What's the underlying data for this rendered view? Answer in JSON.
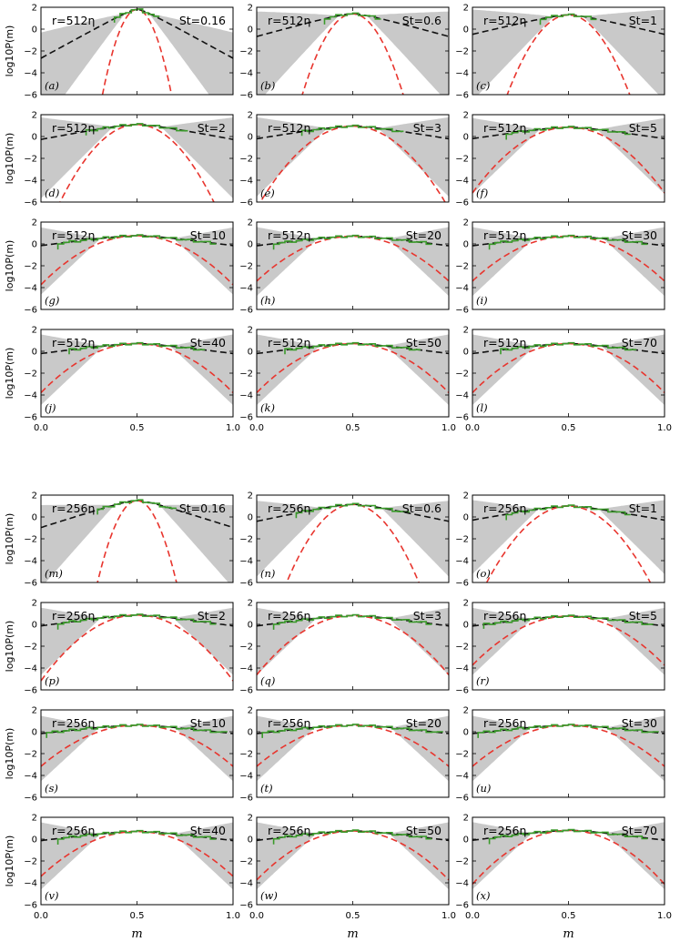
{
  "chart_data": {
    "type": "line",
    "description_axes": {
      "xlabel": "m",
      "ylabel": "log10P(m)",
      "xlim": [
        0.0,
        1.0
      ],
      "ylim": [
        -6,
        2
      ],
      "xticks": [
        "0.0",
        "0.5",
        "1.0"
      ],
      "yticks": [
        "2",
        "0",
        "-2",
        "-4",
        "-6"
      ]
    },
    "series_legend": [
      {
        "name": "simulation histogram",
        "color": "#3a9a2a",
        "style": "step"
      },
      {
        "name": "model (dashed black)",
        "color": "#111111",
        "style": "dashed"
      },
      {
        "name": "Gaussian (dashed red)",
        "color": "#e8352e",
        "style": "dashed"
      },
      {
        "name": "uncertainty band",
        "color": "#c8c8c8",
        "style": "fill"
      }
    ],
    "panels": [
      {
        "label": "(a)",
        "r": "r=512η",
        "st": "St=0.16",
        "peak": 1.8,
        "w_black": 0.035,
        "w_red": 0.03,
        "w_green": 0.035,
        "greenReach": 0.12,
        "grayOuter": 0.16
      },
      {
        "label": "(b)",
        "r": "r=512η",
        "st": "St=0.6",
        "peak": 1.4,
        "w_black": 0.07,
        "w_red": 0.045,
        "w_green": 0.07,
        "greenReach": 0.15,
        "grayOuter": 0.19
      },
      {
        "label": "(c)",
        "r": "r=512η",
        "st": "St=1",
        "peak": 1.3,
        "w_black": 0.08,
        "w_red": 0.055,
        "w_green": 0.08,
        "greenReach": 0.15,
        "grayOuter": 0.2
      },
      {
        "label": "(d)",
        "r": "r=512η",
        "st": "St=2",
        "peak": 1.1,
        "w_black": 0.1,
        "w_red": 0.07,
        "w_green": 0.1,
        "greenReach": 0.25,
        "grayOuter": 0.32
      },
      {
        "label": "(e)",
        "r": "r=512η",
        "st": "St=3",
        "peak": 0.95,
        "w_black": 0.115,
        "w_red": 0.085,
        "w_green": 0.115,
        "greenReach": 0.27,
        "grayOuter": 0.34
      },
      {
        "label": "(f)",
        "r": "r=512η",
        "st": "St=5",
        "peak": 0.85,
        "w_black": 0.125,
        "w_red": 0.095,
        "w_green": 0.125,
        "greenReach": 0.32,
        "grayOuter": 0.38
      },
      {
        "label": "(g)",
        "r": "r=512η",
        "st": "St=10",
        "peak": 0.75,
        "w_black": 0.14,
        "w_red": 0.11,
        "w_green": 0.14,
        "greenReach": 0.42,
        "grayOuter": 0.48
      },
      {
        "label": "(h)",
        "r": "r=512η",
        "st": "St=20",
        "peak": 0.7,
        "w_black": 0.145,
        "w_red": 0.115,
        "w_green": 0.145,
        "greenReach": 0.4,
        "grayOuter": 0.46
      },
      {
        "label": "(i)",
        "r": "r=512η",
        "st": "St=30",
        "peak": 0.7,
        "w_black": 0.145,
        "w_red": 0.115,
        "w_green": 0.145,
        "greenReach": 0.4,
        "grayOuter": 0.46
      },
      {
        "label": "(j)",
        "r": "r=512η",
        "st": "St=40",
        "peak": 0.7,
        "w_black": 0.14,
        "w_red": 0.11,
        "w_green": 0.14,
        "greenReach": 0.36,
        "grayOuter": 0.44
      },
      {
        "label": "(k)",
        "r": "r=512η",
        "st": "St=50",
        "peak": 0.7,
        "w_black": 0.14,
        "w_red": 0.11,
        "w_green": 0.14,
        "greenReach": 0.36,
        "grayOuter": 0.44
      },
      {
        "label": "(l)",
        "r": "r=512η",
        "st": "St=70",
        "peak": 0.7,
        "w_black": 0.14,
        "w_red": 0.11,
        "w_green": 0.14,
        "greenReach": 0.36,
        "grayOuter": 0.44
      },
      {
        "label": "(m)",
        "r": "r=256η",
        "st": "St=0.16",
        "peak": 1.5,
        "w_black": 0.06,
        "w_red": 0.035,
        "w_green": 0.06,
        "greenReach": 0.22,
        "grayOuter": 0.3
      },
      {
        "label": "(n)",
        "r": "r=256η",
        "st": "St=0.6",
        "peak": 1.15,
        "w_black": 0.09,
        "w_red": 0.06,
        "w_green": 0.09,
        "greenReach": 0.3,
        "grayOuter": 0.38
      },
      {
        "label": "(o)",
        "r": "r=256η",
        "st": "St=1",
        "peak": 1.0,
        "w_black": 0.105,
        "w_red": 0.075,
        "w_green": 0.105,
        "greenReach": 0.33,
        "grayOuter": 0.4
      },
      {
        "label": "(p)",
        "r": "r=256η",
        "st": "St=2",
        "peak": 0.85,
        "w_black": 0.13,
        "w_red": 0.095,
        "w_green": 0.13,
        "greenReach": 0.42,
        "grayOuter": 0.48
      },
      {
        "label": "(q)",
        "r": "r=256η",
        "st": "St=3",
        "peak": 0.8,
        "w_black": 0.135,
        "w_red": 0.1,
        "w_green": 0.135,
        "greenReach": 0.42,
        "grayOuter": 0.48
      },
      {
        "label": "(r)",
        "r": "r=256η",
        "st": "St=5",
        "peak": 0.75,
        "w_black": 0.14,
        "w_red": 0.11,
        "w_green": 0.14,
        "greenReach": 0.44,
        "grayOuter": 0.48
      },
      {
        "label": "(s)",
        "r": "r=256η",
        "st": "St=10",
        "peak": 0.6,
        "w_black": 0.16,
        "w_red": 0.12,
        "w_green": 0.16,
        "greenReach": 0.47,
        "grayOuter": 0.5
      },
      {
        "label": "(t)",
        "r": "r=256η",
        "st": "St=20",
        "peak": 0.6,
        "w_black": 0.16,
        "w_red": 0.12,
        "w_green": 0.16,
        "greenReach": 0.47,
        "grayOuter": 0.5
      },
      {
        "label": "(u)",
        "r": "r=256η",
        "st": "St=30",
        "peak": 0.6,
        "w_black": 0.16,
        "w_red": 0.12,
        "w_green": 0.16,
        "greenReach": 0.47,
        "grayOuter": 0.5
      },
      {
        "label": "(v)",
        "r": "r=256η",
        "st": "St=40",
        "peak": 0.7,
        "w_black": 0.15,
        "w_red": 0.115,
        "w_green": 0.15,
        "greenReach": 0.42,
        "grayOuter": 0.48
      },
      {
        "label": "(w)",
        "r": "r=256η",
        "st": "St=50",
        "peak": 0.75,
        "w_black": 0.145,
        "w_red": 0.11,
        "w_green": 0.145,
        "greenReach": 0.42,
        "grayOuter": 0.48
      },
      {
        "label": "(x)",
        "r": "r=256η",
        "st": "St=70",
        "peak": 0.8,
        "w_black": 0.14,
        "w_red": 0.105,
        "w_green": 0.14,
        "greenReach": 0.42,
        "grayOuter": 0.48
      }
    ]
  }
}
